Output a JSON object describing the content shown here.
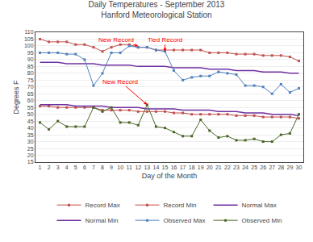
{
  "chart_data": {
    "type": "line",
    "title": "Daily Temperatures - September 2013",
    "subtitle": "Hanford Meteorological Station",
    "xlabel": "Day of the Month",
    "ylabel": "Degrees F",
    "x": [
      1,
      2,
      3,
      4,
      5,
      6,
      7,
      8,
      9,
      10,
      11,
      12,
      13,
      14,
      15,
      16,
      17,
      18,
      19,
      20,
      21,
      22,
      23,
      24,
      25,
      26,
      27,
      28,
      29,
      30
    ],
    "series": [
      {
        "name": "Record Max",
        "color": "#c0504d",
        "marker": "square",
        "values": [
          105,
          103,
          103,
          103,
          101,
          101,
          99,
          96,
          99,
          101,
          101,
          99,
          99,
          97,
          97,
          97,
          97,
          97,
          97,
          95,
          95,
          95,
          94,
          94,
          94,
          93,
          93,
          93,
          92,
          89
        ]
      },
      {
        "name": "Record Min",
        "color": "#c0504d",
        "marker": "square",
        "values": [
          56,
          56,
          55,
          55,
          55,
          55,
          55,
          53,
          53,
          53,
          53,
          52,
          52,
          52,
          52,
          51,
          51,
          50,
          50,
          50,
          50,
          50,
          49,
          49,
          49,
          48,
          48,
          48,
          48,
          47
        ]
      },
      {
        "name": "Normal Max",
        "color": "#7030a0",
        "values": [
          88,
          88,
          88,
          87,
          87,
          87,
          87,
          86,
          86,
          86,
          86,
          85,
          85,
          85,
          85,
          84,
          84,
          84,
          84,
          83,
          83,
          83,
          82,
          82,
          82,
          81,
          81,
          81,
          80,
          80
        ]
      },
      {
        "name": "Normal Min",
        "color": "#7030a0",
        "values": [
          57,
          57,
          57,
          57,
          56,
          56,
          56,
          56,
          55,
          55,
          55,
          55,
          54,
          54,
          54,
          54,
          53,
          53,
          53,
          53,
          52,
          52,
          52,
          51,
          51,
          51,
          50,
          50,
          50,
          49
        ]
      },
      {
        "name": "Observed Max",
        "color": "#4f81bd",
        "marker": "square",
        "values": [
          95,
          95,
          95,
          94,
          94,
          90,
          71,
          80,
          95,
          95,
          100,
          99,
          99,
          97,
          96,
          82,
          75,
          77,
          78,
          78,
          81,
          80,
          79,
          71,
          71,
          70,
          65,
          72,
          66,
          69
        ]
      },
      {
        "name": "Observed Min",
        "color": "#4a6628",
        "marker": "square",
        "values": [
          44,
          39,
          45,
          41,
          41,
          41,
          55,
          52,
          55,
          44,
          44,
          42,
          57,
          41,
          40,
          37,
          34,
          34,
          46,
          38,
          33,
          34,
          31,
          31,
          32,
          30,
          30,
          35,
          36,
          50
        ]
      }
    ],
    "annotations": [
      {
        "text": "New Record",
        "x": 12,
        "y": 100,
        "text_x": 9.5,
        "text_y": 104.5,
        "color": "red"
      },
      {
        "text": "Tied Record",
        "x": 15,
        "y": 96,
        "text_x": 15.0,
        "text_y": 104.5,
        "color": "red"
      },
      {
        "text": "New Record",
        "x": 13,
        "y": 57,
        "text_x": 10.0,
        "text_y": 74,
        "color": "red"
      }
    ],
    "xlim": [
      0.5,
      30.5
    ],
    "xticks": [
      1,
      2,
      3,
      4,
      5,
      6,
      7,
      8,
      9,
      10,
      11,
      12,
      13,
      14,
      15,
      16,
      17,
      18,
      19,
      20,
      21,
      22,
      23,
      24,
      25,
      26,
      27,
      28,
      29,
      30
    ],
    "ylim": [
      15,
      110
    ],
    "yticks": [
      15,
      20,
      25,
      30,
      35,
      40,
      45,
      50,
      55,
      60,
      65,
      70,
      75,
      80,
      85,
      90,
      95,
      100,
      105,
      110
    ],
    "grid": true,
    "legend": "bottom"
  }
}
